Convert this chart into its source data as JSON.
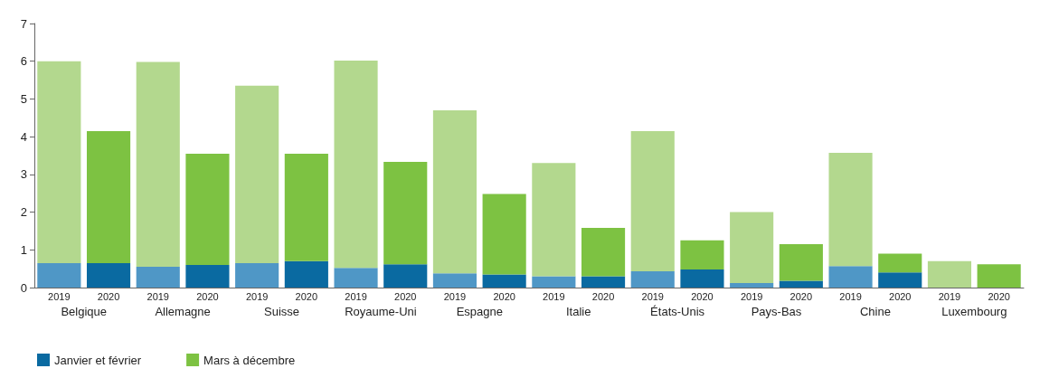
{
  "chart_data": {
    "type": "bar",
    "stacked": true,
    "categories": [
      "2019",
      "2020",
      "2019",
      "2020",
      "2019",
      "2020",
      "2019",
      "2020",
      "2019",
      "2020",
      "2019",
      "2020",
      "2019",
      "2020",
      "2019",
      "2020",
      "2019",
      "2020",
      "2019",
      "2020"
    ],
    "annotations": [
      "Belgique",
      "Allemagne",
      "Suisse",
      "Royaume-Uni",
      "Espagne",
      "Italie",
      "États-Unis",
      "Pays-Bas",
      "Chine",
      "Luxembourg"
    ],
    "series": [
      {
        "name": "Janvier et février",
        "color": "#0a6aa1",
        "colors": [
          "#4f97c6",
          "#0a6aa1",
          "#4f97c6",
          "#0a6aa1",
          "#4f97c6",
          "#0a6aa1",
          "#4f97c6",
          "#0a6aa1",
          "#4f97c6",
          "#0a6aa1",
          "#4f97c6",
          "#0a6aa1",
          "#4f97c6",
          "#0a6aa1",
          "#4f97c6",
          "#0a6aa1",
          "#4f97c6",
          "#0a6aa1",
          "#4f97c6",
          "#0a6aa1"
        ],
        "values": [
          0.65,
          0.65,
          0.55,
          0.6,
          0.65,
          0.7,
          0.52,
          0.62,
          0.38,
          0.35,
          0.3,
          0.3,
          0.43,
          0.48,
          0.12,
          0.18,
          0.57,
          0.4,
          0,
          0
        ]
      },
      {
        "name": "Mars à décembre",
        "color": "#7dc242",
        "colors": [
          "#b3d88e",
          "#7dc242",
          "#b3d88e",
          "#7dc242",
          "#b3d88e",
          "#7dc242",
          "#b3d88e",
          "#7dc242",
          "#b3d88e",
          "#7dc242",
          "#b3d88e",
          "#7dc242",
          "#b3d88e",
          "#7dc242",
          "#b3d88e",
          "#7dc242",
          "#b3d88e",
          "#7dc242",
          "#b3d88e",
          "#7dc242"
        ],
        "values": [
          5.35,
          3.5,
          5.43,
          2.95,
          4.7,
          2.85,
          5.5,
          2.71,
          4.32,
          2.13,
          3.0,
          1.28,
          3.72,
          0.77,
          1.88,
          0.97,
          3.0,
          0.5,
          0.7,
          0.62
        ]
      }
    ],
    "ylim": [
      0,
      7
    ],
    "yticks": [
      0,
      1,
      2,
      3,
      4,
      5,
      6,
      7
    ],
    "grid": false,
    "legend": "bottom left"
  }
}
